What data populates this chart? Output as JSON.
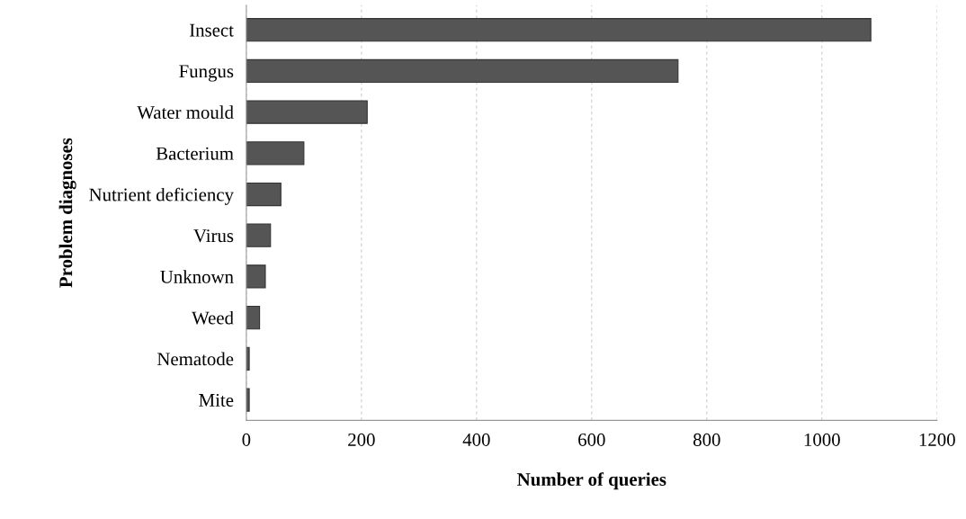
{
  "chart_data": {
    "type": "bar",
    "orientation": "horizontal",
    "xlabel": "Number of queries",
    "ylabel": "Problem diagnoses",
    "categories": [
      "Insect",
      "Fungus",
      "Water mould",
      "Bacterium",
      "Nutrient deficiency",
      "Virus",
      "Unknown",
      "Weed",
      "Nematode",
      "Mite"
    ],
    "values": [
      1085,
      750,
      210,
      100,
      60,
      42,
      33,
      23,
      5,
      5
    ],
    "color": "#555555",
    "xlim": [
      0,
      1200
    ],
    "xticks": [
      0,
      200,
      400,
      600,
      800,
      1000,
      1200
    ],
    "grid": "x"
  }
}
